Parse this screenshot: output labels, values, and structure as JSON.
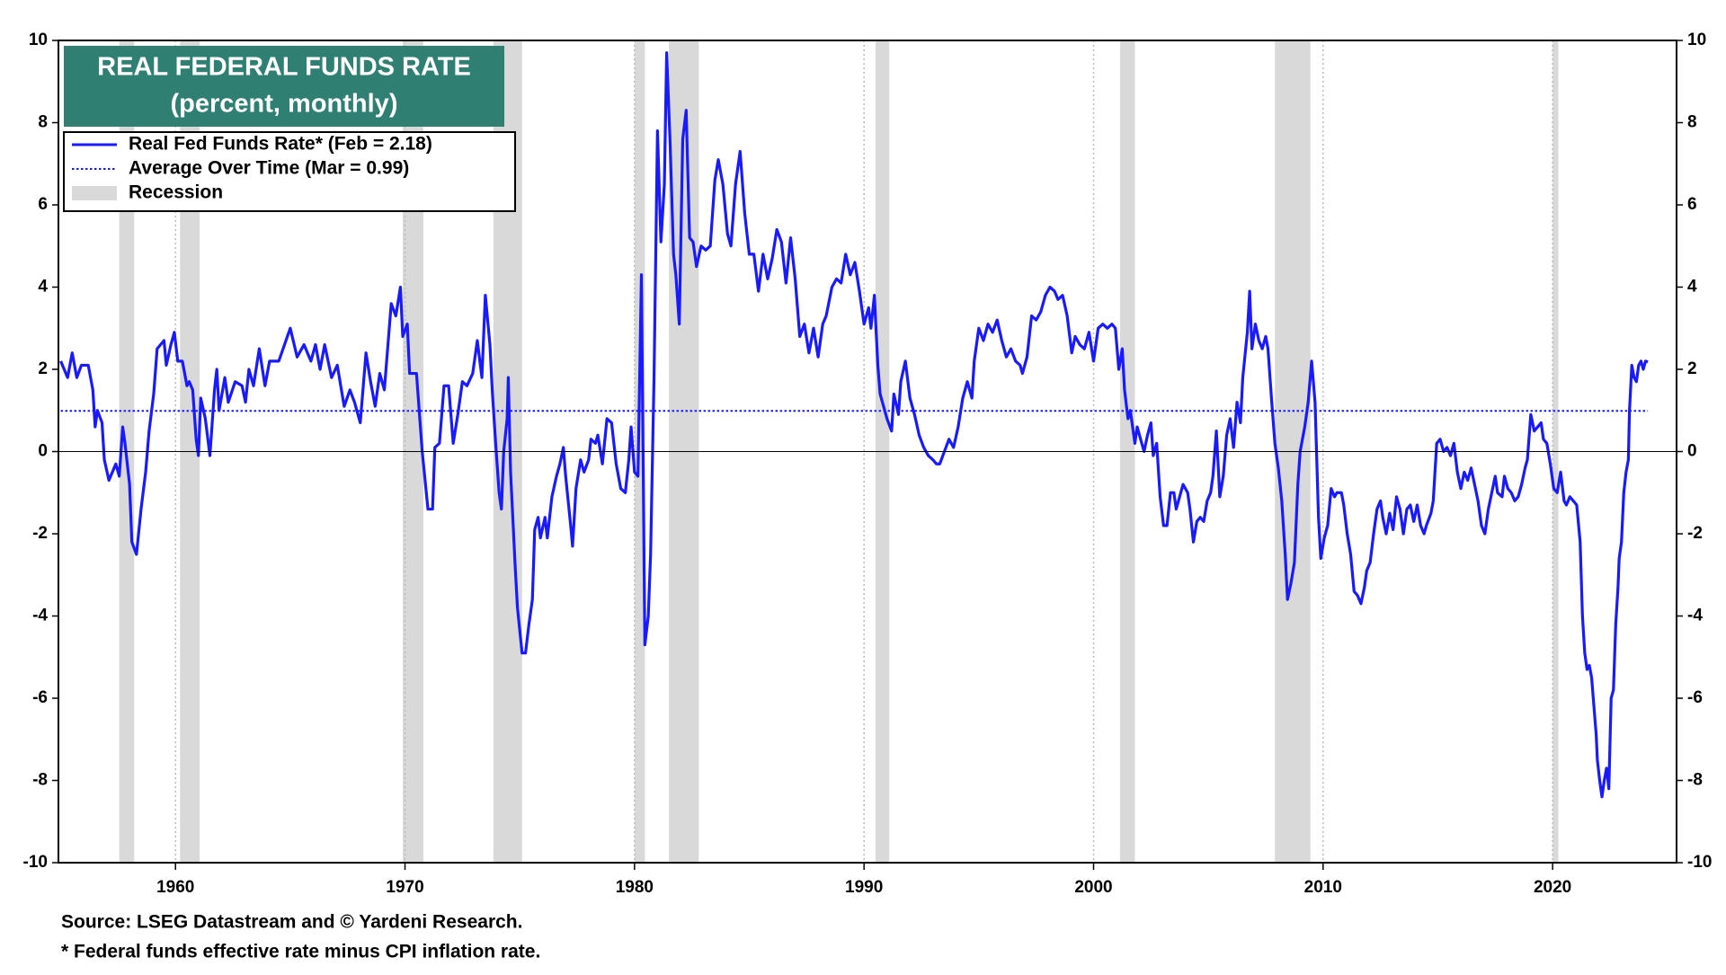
{
  "chart_data": {
    "type": "line",
    "title": "REAL FEDERAL FUNDS RATE",
    "subtitle": "(percent, monthly)",
    "title_box_color": "#2f7f73",
    "x": [
      1955.0,
      1955.3,
      1955.5,
      1955.7,
      1955.9,
      1956.2,
      1956.4,
      1956.5,
      1956.6,
      1956.8,
      1956.9,
      1957.1,
      1957.4,
      1957.55,
      1957.7,
      1957.8,
      1958.0,
      1958.1,
      1958.3,
      1958.5,
      1958.7,
      1958.85,
      1959.05,
      1959.2,
      1959.5,
      1959.6,
      1959.8,
      1959.95,
      1960.1,
      1960.3,
      1960.5,
      1960.6,
      1960.75,
      1960.9,
      1961.0,
      1961.1,
      1961.3,
      1961.5,
      1961.7,
      1961.8,
      1961.9,
      1962.15,
      1962.3,
      1962.6,
      1962.9,
      1963.05,
      1963.2,
      1963.4,
      1963.65,
      1963.9,
      1964.1,
      1964.5,
      1964.75,
      1965.0,
      1965.3,
      1965.6,
      1965.9,
      1966.1,
      1966.3,
      1966.5,
      1966.8,
      1967.05,
      1967.35,
      1967.6,
      1967.8,
      1968.05,
      1968.3,
      1968.5,
      1968.7,
      1968.9,
      1969.1,
      1969.4,
      1969.6,
      1969.8,
      1969.9,
      1970.1,
      1970.2,
      1970.5,
      1970.75,
      1971.0,
      1971.2,
      1971.3,
      1971.5,
      1971.7,
      1971.9,
      1972.1,
      1972.3,
      1972.5,
      1972.7,
      1972.95,
      1973.15,
      1973.35,
      1973.5,
      1973.7,
      1973.8,
      1973.95,
      1974.1,
      1974.2,
      1974.3,
      1974.45,
      1974.5,
      1974.6,
      1974.8,
      1974.9,
      1975.1,
      1975.25,
      1975.4,
      1975.55,
      1975.65,
      1975.8,
      1975.9,
      1976.1,
      1976.2,
      1976.4,
      1976.6,
      1976.75,
      1976.9,
      1977.0,
      1977.2,
      1977.3,
      1977.45,
      1977.65,
      1977.8,
      1978.0,
      1978.1,
      1978.3,
      1978.4,
      1978.6,
      1978.8,
      1979.0,
      1979.2,
      1979.4,
      1979.6,
      1979.75,
      1979.85,
      1980.0,
      1980.15,
      1980.3,
      1980.45,
      1980.6,
      1980.7,
      1980.85,
      1981.0,
      1981.15,
      1981.3,
      1981.4,
      1981.55,
      1981.7,
      1981.8,
      1981.95,
      1982.1,
      1982.25,
      1982.4,
      1982.55,
      1982.7,
      1982.9,
      1983.1,
      1983.3,
      1983.5,
      1983.65,
      1983.85,
      1984.05,
      1984.2,
      1984.4,
      1984.6,
      1984.8,
      1985.0,
      1985.2,
      1985.4,
      1985.6,
      1985.8,
      1986.0,
      1986.2,
      1986.4,
      1986.6,
      1986.8,
      1987.0,
      1987.2,
      1987.4,
      1987.6,
      1987.8,
      1988.0,
      1988.2,
      1988.35,
      1988.6,
      1988.8,
      1989.0,
      1989.2,
      1989.4,
      1989.6,
      1989.8,
      1990.0,
      1990.2,
      1990.3,
      1990.45,
      1990.6,
      1990.7,
      1990.9,
      1991.0,
      1991.2,
      1991.3,
      1991.5,
      1991.6,
      1991.8,
      1992.0,
      1992.2,
      1992.4,
      1992.6,
      1992.8,
      1993.0,
      1993.15,
      1993.3,
      1993.5,
      1993.7,
      1993.9,
      1994.1,
      1994.3,
      1994.5,
      1994.7,
      1994.8,
      1995.0,
      1995.2,
      1995.4,
      1995.6,
      1995.8,
      1996.0,
      1996.2,
      1996.4,
      1996.6,
      1996.8,
      1996.9,
      1997.1,
      1997.3,
      1997.5,
      1997.7,
      1997.9,
      1998.1,
      1998.3,
      1998.45,
      1998.65,
      1998.85,
      1999.05,
      1999.2,
      1999.4,
      1999.6,
      1999.8,
      2000.0,
      2000.2,
      2000.4,
      2000.6,
      2000.8,
      2000.95,
      2001.1,
      2001.25,
      2001.35,
      2001.5,
      2001.6,
      2001.8,
      2001.9,
      2002.05,
      2002.2,
      2002.35,
      2002.5,
      2002.6,
      2002.75,
      2002.9,
      2003.05,
      2003.2,
      2003.35,
      2003.5,
      2003.6,
      2003.75,
      2003.9,
      2004.1,
      2004.2,
      2004.35,
      2004.5,
      2004.65,
      2004.8,
      2004.95,
      2005.1,
      2005.2,
      2005.35,
      2005.5,
      2005.65,
      2005.8,
      2005.95,
      2006.1,
      2006.25,
      2006.4,
      2006.5,
      2006.7,
      2006.8,
      2006.9,
      2007.05,
      2007.2,
      2007.35,
      2007.5,
      2007.6,
      2007.75,
      2007.9,
      2008.05,
      2008.2,
      2008.35,
      2008.45,
      2008.6,
      2008.75,
      2008.9,
      2009.0,
      2009.2,
      2009.35,
      2009.5,
      2009.65,
      2009.8,
      2009.9,
      2010.05,
      2010.2,
      2010.35,
      2010.5,
      2010.6,
      2010.8,
      2010.9,
      2011.05,
      2011.2,
      2011.35,
      2011.5,
      2011.65,
      2011.8,
      2011.9,
      2012.05,
      2012.2,
      2012.35,
      2012.5,
      2012.6,
      2012.75,
      2012.9,
      2013.05,
      2013.2,
      2013.35,
      2013.5,
      2013.65,
      2013.8,
      2013.95,
      2014.1,
      2014.25,
      2014.4,
      2014.5,
      2014.7,
      2014.8,
      2014.95,
      2015.1,
      2015.25,
      2015.4,
      2015.55,
      2015.7,
      2015.85,
      2016.0,
      2016.15,
      2016.3,
      2016.45,
      2016.6,
      2016.75,
      2016.9,
      2017.05,
      2017.2,
      2017.35,
      2017.5,
      2017.6,
      2017.8,
      2017.9,
      2018.05,
      2018.2,
      2018.35,
      2018.5,
      2018.65,
      2018.8,
      2018.9,
      2019.05,
      2019.2,
      2019.35,
      2019.5,
      2019.6,
      2019.75,
      2019.9,
      2020.05,
      2020.2,
      2020.35,
      2020.5,
      2020.6,
      2020.75,
      2020.9,
      2021.05,
      2021.2,
      2021.3,
      2021.4,
      2021.5,
      2021.6,
      2021.7,
      2021.8,
      2021.9,
      2021.95,
      2022.05,
      2022.15,
      2022.25,
      2022.35,
      2022.45,
      2022.55,
      2022.65,
      2022.75,
      2022.85,
      2022.9,
      2023.0,
      2023.1,
      2023.2,
      2023.3,
      2023.35,
      2023.45,
      2023.55,
      2023.65,
      2023.75,
      2023.85,
      2023.95,
      2024.05,
      2024.15
    ],
    "series": [
      {
        "name": "Real Fed Funds Rate* (Feb = 2.18)",
        "color": "#1a1aff",
        "style": "solid",
        "values": [
          2.2,
          1.8,
          2.4,
          1.8,
          2.1,
          2.1,
          1.5,
          0.6,
          1.0,
          0.7,
          -0.2,
          -0.7,
          -0.3,
          -0.6,
          0.6,
          0.2,
          -0.8,
          -2.2,
          -2.5,
          -1.4,
          -0.5,
          0.5,
          1.4,
          2.5,
          2.7,
          2.1,
          2.6,
          2.9,
          2.2,
          2.2,
          1.6,
          1.7,
          1.5,
          0.3,
          -0.1,
          1.3,
          0.8,
          -0.1,
          1.5,
          2.0,
          1.0,
          1.8,
          1.2,
          1.7,
          1.6,
          1.2,
          2.0,
          1.6,
          2.5,
          1.6,
          2.2,
          2.2,
          2.6,
          3.0,
          2.3,
          2.6,
          2.2,
          2.6,
          2.0,
          2.6,
          1.8,
          2.1,
          1.1,
          1.5,
          1.2,
          0.7,
          2.4,
          1.7,
          1.1,
          1.9,
          1.5,
          3.6,
          3.3,
          4.0,
          2.8,
          3.1,
          1.9,
          1.9,
          0.0,
          -1.4,
          -1.4,
          0.1,
          0.2,
          1.6,
          1.6,
          0.2,
          0.9,
          1.7,
          1.6,
          1.9,
          2.7,
          1.8,
          3.8,
          2.6,
          1.5,
          0.2,
          -1.0,
          -1.4,
          0.0,
          0.8,
          1.8,
          -0.5,
          -2.8,
          -3.8,
          -4.9,
          -4.9,
          -4.2,
          -3.6,
          -1.9,
          -1.6,
          -2.1,
          -1.6,
          -2.1,
          -1.1,
          -0.6,
          -0.3,
          0.1,
          -0.6,
          -1.7,
          -2.3,
          -0.9,
          -0.2,
          -0.5,
          -0.2,
          0.3,
          0.2,
          0.4,
          -0.3,
          0.8,
          0.7,
          -0.3,
          -0.9,
          -1.0,
          -0.2,
          0.6,
          -0.5,
          -0.6,
          4.3,
          -4.7,
          -4.0,
          -2.5,
          1.8,
          7.8,
          5.1,
          6.5,
          9.7,
          7.5,
          4.8,
          4.3,
          3.1,
          7.6,
          8.3,
          5.2,
          5.1,
          4.5,
          5.0,
          4.9,
          5.0,
          6.6,
          7.1,
          6.5,
          5.3,
          5.0,
          6.5,
          7.3,
          5.8,
          4.8,
          4.8,
          3.9,
          4.8,
          4.2,
          4.7,
          5.4,
          5.1,
          4.1,
          5.2,
          4.2,
          2.8,
          3.1,
          2.4,
          3.0,
          2.3,
          3.1,
          3.3,
          4.0,
          4.2,
          4.1,
          4.8,
          4.3,
          4.6,
          3.9,
          3.1,
          3.5,
          3.0,
          3.8,
          2.1,
          1.4,
          1.0,
          0.8,
          0.5,
          1.4,
          0.9,
          1.7,
          2.2,
          1.3,
          0.9,
          0.4,
          0.1,
          -0.1,
          -0.2,
          -0.3,
          -0.3,
          0.0,
          0.3,
          0.1,
          0.6,
          1.3,
          1.7,
          1.3,
          2.2,
          3.0,
          2.7,
          3.1,
          2.9,
          3.2,
          2.7,
          2.3,
          2.5,
          2.2,
          2.1,
          1.9,
          2.3,
          3.3,
          3.2,
          3.4,
          3.8,
          4.0,
          3.9,
          3.7,
          3.8,
          3.3,
          2.4,
          2.8,
          2.6,
          2.5,
          2.9,
          2.2,
          3.0,
          3.1,
          3.0,
          3.1,
          3.0,
          2.0,
          2.5,
          1.5,
          0.8,
          1.0,
          0.2,
          0.6,
          0.3,
          0.0,
          0.4,
          0.7,
          -0.1,
          0.2,
          -1.1,
          -1.8,
          -1.8,
          -1.0,
          -1.0,
          -1.4,
          -1.1,
          -0.8,
          -1.0,
          -1.4,
          -2.2,
          -1.7,
          -1.6,
          -1.7,
          -1.2,
          -1.0,
          -0.6,
          0.5,
          -1.1,
          -0.6,
          0.4,
          0.8,
          0.1,
          1.2,
          0.7,
          1.8,
          2.9,
          3.9,
          2.5,
          3.1,
          2.7,
          2.5,
          2.8,
          2.5,
          1.3,
          0.2,
          -0.4,
          -1.2,
          -2.5,
          -3.6,
          -3.2,
          -2.7,
          -0.8,
          0.0,
          0.6,
          1.2,
          2.2,
          1.2,
          -1.6,
          -2.6,
          -2.1,
          -1.8,
          -0.9,
          -1.1,
          -1.0,
          -1.0,
          -1.3,
          -2.0,
          -2.5,
          -3.4,
          -3.5,
          -3.7,
          -3.3,
          -2.9,
          -2.7,
          -2.0,
          -1.4,
          -1.2,
          -1.6,
          -2.0,
          -1.5,
          -1.9,
          -1.1,
          -1.4,
          -2.0,
          -1.4,
          -1.3,
          -1.7,
          -1.3,
          -1.8,
          -2.0,
          -1.8,
          -1.5,
          -1.2,
          0.2,
          0.3,
          0.0,
          0.1,
          -0.1,
          0.2,
          -0.5,
          -0.9,
          -0.5,
          -0.7,
          -0.4,
          -0.8,
          -1.2,
          -1.8,
          -2.0,
          -1.4,
          -1.0,
          -0.6,
          -1.0,
          -1.1,
          -0.6,
          -0.9,
          -1.0,
          -1.2,
          -1.1,
          -0.8,
          -0.4,
          -0.2,
          0.9,
          0.5,
          0.6,
          0.7,
          0.3,
          0.2,
          -0.3,
          -0.9,
          -1.0,
          -0.5,
          -1.2,
          -1.3,
          -1.1,
          -1.2,
          -1.3,
          -2.2,
          -4.0,
          -4.9,
          -5.3,
          -5.2,
          -5.5,
          -6.2,
          -6.9,
          -7.5,
          -8.0,
          -8.4,
          -8.0,
          -7.7,
          -8.2,
          -6.0,
          -5.8,
          -4.2,
          -3.3,
          -2.6,
          -2.2,
          -1.0,
          -0.5,
          -0.2,
          1.0,
          2.1,
          1.8,
          1.7,
          2.1,
          2.2,
          2.0,
          2.2,
          2.18
        ]
      },
      {
        "name": "Average Over Time (Mar = 0.99)",
        "color": "#1a1aff",
        "style": "dotted",
        "x": [
          1955.0,
          2024.15
        ],
        "values": [
          0.99,
          0.99
        ]
      }
    ],
    "recessions": {
      "name": "Recession",
      "color": "#d9d9d9",
      "periods": [
        [
          1957.55,
          1958.2
        ],
        [
          1960.2,
          1961.05
        ],
        [
          1969.9,
          1970.8
        ],
        [
          1973.85,
          1975.1
        ],
        [
          1980.0,
          1980.45
        ],
        [
          1981.5,
          1982.8
        ],
        [
          1990.5,
          1991.1
        ],
        [
          2001.15,
          2001.8
        ],
        [
          2007.9,
          2009.45
        ],
        [
          2020.0,
          2020.25
        ]
      ]
    },
    "xlim": [
      1954.9,
      2025.4
    ],
    "xticks": [
      1960,
      1970,
      1980,
      1990,
      2000,
      2010,
      2020
    ],
    "ylim": [
      -10,
      10
    ],
    "yticks": [
      -10,
      -8,
      -6,
      -4,
      -2,
      0,
      2,
      4,
      6,
      8,
      10
    ],
    "grid": "x",
    "right_axis_labels": true,
    "notes": [
      "Source: LSEG Datastream and © Yardeni Research.",
      "* Federal funds effective rate minus CPI inflation rate."
    ]
  }
}
